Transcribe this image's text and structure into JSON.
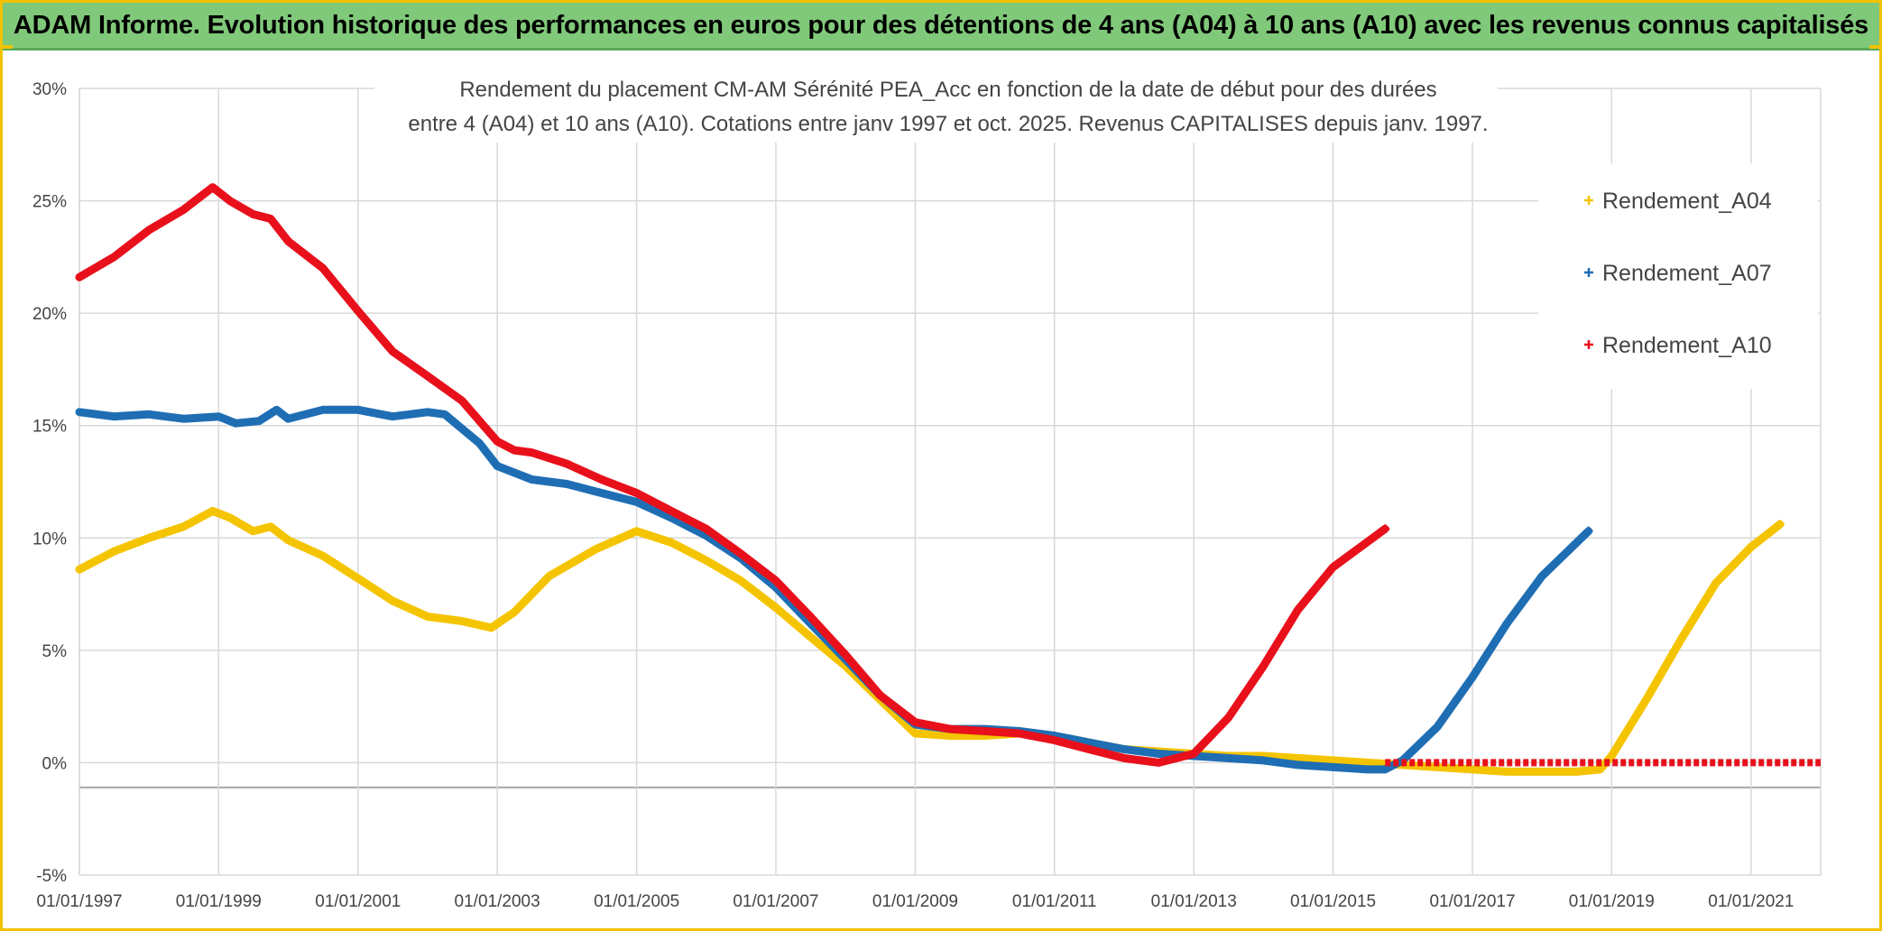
{
  "banner": {
    "title": "ADAM Informe. Evolution historique des performances en euros pour des détentions de 4 ans (A04) à 10 ans (A10) avec les revenus connus capitalisés"
  },
  "chart_data": {
    "type": "scatter",
    "title_line1": "Rendement du placement CM-AM Sérénité PEA_Acc en fonction de la date de début pour des durées",
    "title_line2": "entre 4 (A04) et 10 ans (A10). Cotations entre janv 1997 et oct. 2025. Revenus CAPITALISES depuis janv. 1997.",
    "xlabel": "",
    "ylabel": "",
    "xlim": [
      "1997-01-01",
      "2022-01-01"
    ],
    "ylim": [
      -5,
      30
    ],
    "x_ticks": [
      "01/01/1997",
      "01/01/1999",
      "01/01/2001",
      "01/01/2003",
      "01/01/2005",
      "01/01/2007",
      "01/01/2009",
      "01/01/2011",
      "01/01/2013",
      "01/01/2015",
      "01/01/2017",
      "01/01/2019",
      "01/01/2021"
    ],
    "y_ticks": [
      "-5%",
      "0%",
      "5%",
      "10%",
      "15%",
      "20%",
      "25%",
      "30%"
    ],
    "y_tick_values": [
      -5,
      0,
      5,
      10,
      15,
      20,
      25,
      30
    ],
    "grid": true,
    "legend_position": "top-right",
    "series": [
      {
        "name": "Rendement_A04",
        "color": "#f5c400",
        "points": [
          [
            "1997-01-01",
            8.6
          ],
          [
            "1997-07-01",
            9.4
          ],
          [
            "1998-01-01",
            10.0
          ],
          [
            "1998-07-01",
            10.5
          ],
          [
            "1998-12-01",
            11.2
          ],
          [
            "1999-03-01",
            10.9
          ],
          [
            "1999-07-01",
            10.3
          ],
          [
            "1999-10-01",
            10.5
          ],
          [
            "2000-01-01",
            9.9
          ],
          [
            "2000-07-01",
            9.2
          ],
          [
            "2001-01-01",
            8.2
          ],
          [
            "2001-07-01",
            7.2
          ],
          [
            "2002-01-01",
            6.5
          ],
          [
            "2002-07-01",
            6.3
          ],
          [
            "2002-12-01",
            6.0
          ],
          [
            "2003-04-01",
            6.7
          ],
          [
            "2003-10-01",
            8.3
          ],
          [
            "2004-06-01",
            9.5
          ],
          [
            "2005-01-01",
            10.3
          ],
          [
            "2005-07-01",
            9.8
          ],
          [
            "2006-01-01",
            9.0
          ],
          [
            "2006-07-01",
            8.1
          ],
          [
            "2007-01-01",
            6.9
          ],
          [
            "2007-07-01",
            5.6
          ],
          [
            "2008-01-01",
            4.3
          ],
          [
            "2008-07-01",
            2.8
          ],
          [
            "2009-01-01",
            1.3
          ],
          [
            "2009-07-01",
            1.2
          ],
          [
            "2010-01-01",
            1.2
          ],
          [
            "2010-07-01",
            1.3
          ],
          [
            "2011-01-01",
            1.2
          ],
          [
            "2011-07-01",
            0.9
          ],
          [
            "2012-01-01",
            0.6
          ],
          [
            "2012-07-01",
            0.5
          ],
          [
            "2013-01-01",
            0.4
          ],
          [
            "2013-07-01",
            0.3
          ],
          [
            "2014-01-01",
            0.3
          ],
          [
            "2014-07-01",
            0.2
          ],
          [
            "2015-01-01",
            0.1
          ],
          [
            "2015-07-01",
            0.0
          ],
          [
            "2016-01-01",
            -0.1
          ],
          [
            "2016-07-01",
            -0.2
          ],
          [
            "2017-01-01",
            -0.3
          ],
          [
            "2017-07-01",
            -0.4
          ],
          [
            "2018-01-01",
            -0.4
          ],
          [
            "2018-07-01",
            -0.4
          ],
          [
            "2018-11-01",
            -0.3
          ],
          [
            "2019-01-01",
            0.3
          ],
          [
            "2019-07-01",
            2.8
          ],
          [
            "2020-01-01",
            5.5
          ],
          [
            "2020-07-01",
            8.0
          ],
          [
            "2021-01-01",
            9.6
          ],
          [
            "2021-06-01",
            10.6
          ]
        ]
      },
      {
        "name": "Rendement_A07",
        "color": "#1f6eb4",
        "points": [
          [
            "1997-01-01",
            15.6
          ],
          [
            "1997-07-01",
            15.4
          ],
          [
            "1998-01-01",
            15.5
          ],
          [
            "1998-07-01",
            15.3
          ],
          [
            "1999-01-01",
            15.4
          ],
          [
            "1999-04-01",
            15.1
          ],
          [
            "1999-08-01",
            15.2
          ],
          [
            "1999-11-01",
            15.7
          ],
          [
            "2000-01-01",
            15.3
          ],
          [
            "2000-07-01",
            15.7
          ],
          [
            "2001-01-01",
            15.7
          ],
          [
            "2001-07-01",
            15.4
          ],
          [
            "2002-01-01",
            15.6
          ],
          [
            "2002-04-01",
            15.5
          ],
          [
            "2002-10-01",
            14.2
          ],
          [
            "2003-01-01",
            13.2
          ],
          [
            "2003-07-01",
            12.6
          ],
          [
            "2004-01-01",
            12.4
          ],
          [
            "2004-07-01",
            12.0
          ],
          [
            "2005-01-01",
            11.6
          ],
          [
            "2005-07-01",
            10.9
          ],
          [
            "2006-01-01",
            10.1
          ],
          [
            "2006-07-01",
            9.1
          ],
          [
            "2007-01-01",
            7.8
          ],
          [
            "2007-07-01",
            6.2
          ],
          [
            "2008-01-01",
            4.6
          ],
          [
            "2008-07-01",
            3.0
          ],
          [
            "2009-01-01",
            1.7
          ],
          [
            "2009-07-01",
            1.5
          ],
          [
            "2010-01-01",
            1.5
          ],
          [
            "2010-07-01",
            1.4
          ],
          [
            "2011-01-01",
            1.2
          ],
          [
            "2011-07-01",
            0.9
          ],
          [
            "2012-01-01",
            0.6
          ],
          [
            "2012-07-01",
            0.4
          ],
          [
            "2013-01-01",
            0.3
          ],
          [
            "2013-07-01",
            0.2
          ],
          [
            "2014-01-01",
            0.1
          ],
          [
            "2014-07-01",
            -0.1
          ],
          [
            "2015-01-01",
            -0.2
          ],
          [
            "2015-07-01",
            -0.3
          ],
          [
            "2015-10-01",
            -0.3
          ],
          [
            "2016-01-01",
            0.1
          ],
          [
            "2016-07-01",
            1.6
          ],
          [
            "2017-01-01",
            3.8
          ],
          [
            "2017-07-01",
            6.2
          ],
          [
            "2018-01-01",
            8.3
          ],
          [
            "2018-09-01",
            10.3
          ]
        ]
      },
      {
        "name": "Rendement_A10",
        "color": "#e8101b",
        "points": [
          [
            "1997-01-01",
            21.6
          ],
          [
            "1997-07-01",
            22.5
          ],
          [
            "1998-01-01",
            23.7
          ],
          [
            "1998-07-01",
            24.6
          ],
          [
            "1998-12-01",
            25.6
          ],
          [
            "1999-03-01",
            25.0
          ],
          [
            "1999-07-01",
            24.4
          ],
          [
            "1999-10-01",
            24.2
          ],
          [
            "2000-01-01",
            23.2
          ],
          [
            "2000-07-01",
            22.0
          ],
          [
            "2001-01-01",
            20.1
          ],
          [
            "2001-07-01",
            18.3
          ],
          [
            "2002-01-01",
            17.2
          ],
          [
            "2002-07-01",
            16.1
          ],
          [
            "2003-01-01",
            14.3
          ],
          [
            "2003-04-01",
            13.9
          ],
          [
            "2003-07-01",
            13.8
          ],
          [
            "2004-01-01",
            13.3
          ],
          [
            "2004-07-01",
            12.6
          ],
          [
            "2005-01-01",
            12.0
          ],
          [
            "2005-07-01",
            11.2
          ],
          [
            "2006-01-01",
            10.4
          ],
          [
            "2006-07-01",
            9.3
          ],
          [
            "2007-01-01",
            8.1
          ],
          [
            "2007-07-01",
            6.5
          ],
          [
            "2008-01-01",
            4.8
          ],
          [
            "2008-07-01",
            3.0
          ],
          [
            "2009-01-01",
            1.8
          ],
          [
            "2009-07-01",
            1.5
          ],
          [
            "2010-01-01",
            1.4
          ],
          [
            "2010-07-01",
            1.3
          ],
          [
            "2011-01-01",
            1.0
          ],
          [
            "2011-07-01",
            0.6
          ],
          [
            "2012-01-01",
            0.2
          ],
          [
            "2012-07-01",
            0.0
          ],
          [
            "2013-01-01",
            0.4
          ],
          [
            "2013-07-01",
            2.0
          ],
          [
            "2014-01-01",
            4.3
          ],
          [
            "2014-07-01",
            6.8
          ],
          [
            "2015-01-01",
            8.7
          ],
          [
            "2015-10-01",
            10.4
          ]
        ],
        "zero_tail": [
          "2015-10-01",
          "2022-01-01"
        ]
      }
    ],
    "legend": [
      {
        "name": "Rendement_A04",
        "color": "#f5c400"
      },
      {
        "name": "Rendement_A07",
        "color": "#1f6eb4"
      },
      {
        "name": "Rendement_A10",
        "color": "#e8101b"
      }
    ]
  }
}
